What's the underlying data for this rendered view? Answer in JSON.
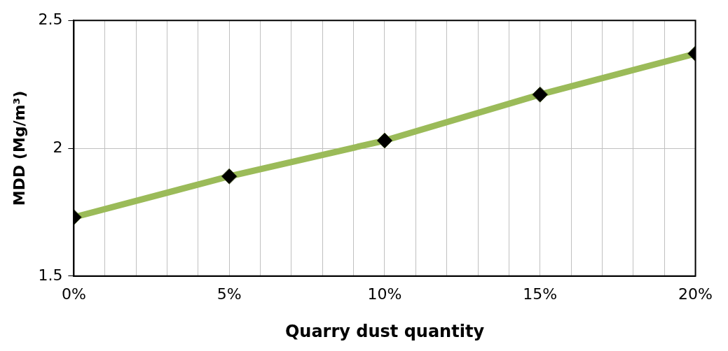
{
  "chart_data": {
    "type": "line",
    "xlabel": "Quarry dust quantity",
    "ylabel": "MDD (Mg/m³)",
    "x": [
      0,
      5,
      10,
      15,
      20
    ],
    "series": [
      {
        "color": "#9bbb59",
        "values": [
          1.73,
          1.89,
          2.03,
          2.21,
          2.37
        ]
      }
    ],
    "xlim": [
      0,
      20
    ],
    "xticks": [
      {
        "value": 0,
        "label": "0%"
      },
      {
        "value": 1,
        "label": null
      },
      {
        "value": 2,
        "label": null
      },
      {
        "value": 3,
        "label": null
      },
      {
        "value": 4,
        "label": null
      },
      {
        "value": 5,
        "label": "5%"
      },
      {
        "value": 6,
        "label": null
      },
      {
        "value": 7,
        "label": null
      },
      {
        "value": 8,
        "label": null
      },
      {
        "value": 9,
        "label": null
      },
      {
        "value": 10,
        "label": "10%"
      },
      {
        "value": 11,
        "label": null
      },
      {
        "value": 12,
        "label": null
      },
      {
        "value": 13,
        "label": null
      },
      {
        "value": 14,
        "label": null
      },
      {
        "value": 15,
        "label": "15%"
      },
      {
        "value": 16,
        "label": null
      },
      {
        "value": 17,
        "label": null
      },
      {
        "value": 18,
        "label": null
      },
      {
        "value": 19,
        "label": null
      },
      {
        "value": 20,
        "label": "20%"
      }
    ],
    "ylim": [
      1.5,
      2.5
    ],
    "yticks": [
      1.5,
      2,
      2.5
    ],
    "grid": true,
    "marker": "diamond",
    "line_style": "solid"
  }
}
